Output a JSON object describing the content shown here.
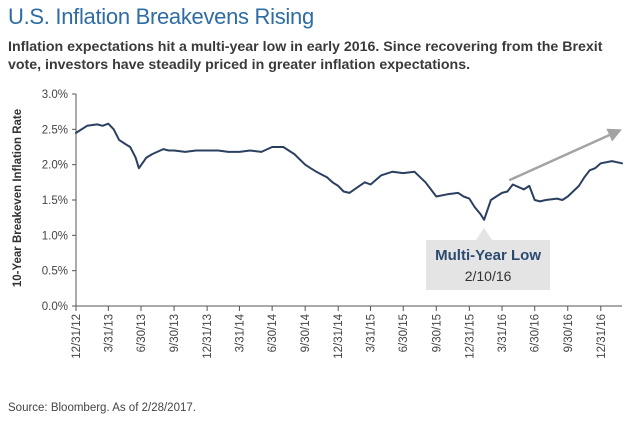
{
  "title": "U.S. Inflation Breakevens Rising",
  "subtitle": "Inflation expectations hit a multi-year low in early 2016. Since recovering from the Brexit vote, investors have steadily priced in greater inflation expectations.",
  "source": "Source: Bloomberg. As of 2/28/2017.",
  "colors": {
    "title": "#2e6da4",
    "line": "#2b4060",
    "arrow": "#a3a3a3",
    "callout_bg": "#e4e4e4",
    "callout_title": "#2b4a6f"
  },
  "chart_data": {
    "type": "line",
    "title": "U.S. Inflation Breakevens Rising",
    "ylabel": "10-Year Breakeven Inflation Rate",
    "xlabel": "",
    "ylim": [
      0,
      3
    ],
    "yticks": [
      "0.0%",
      "0.5%",
      "1.0%",
      "1.5%",
      "2.0%",
      "2.5%",
      "3.0%"
    ],
    "xlim": [
      "2012-12-31",
      "2017-02-28"
    ],
    "xticks": [
      "12/31/12",
      "3/31/13",
      "6/30/13",
      "9/30/13",
      "12/31/13",
      "3/31/14",
      "6/30/14",
      "9/30/14",
      "12/31/14",
      "3/31/15",
      "6/30/15",
      "9/30/15",
      "12/31/15",
      "3/31/16",
      "6/30/16",
      "9/30/16",
      "12/31/16"
    ],
    "grid": false,
    "legend": "none",
    "series": [
      {
        "x": [
          "2012-12-31",
          "2013-01-31",
          "2013-02-28",
          "2013-03-15",
          "2013-03-31",
          "2013-04-15",
          "2013-04-30",
          "2013-05-15",
          "2013-05-31",
          "2013-06-15",
          "2013-06-24",
          "2013-07-15",
          "2013-07-31",
          "2013-08-31",
          "2013-09-15",
          "2013-09-30",
          "2013-10-31",
          "2013-11-30",
          "2013-12-31",
          "2014-01-31",
          "2014-02-28",
          "2014-03-31",
          "2014-04-30",
          "2014-05-31",
          "2014-06-30",
          "2014-07-31",
          "2014-08-31",
          "2014-09-30",
          "2014-10-15",
          "2014-10-31",
          "2014-11-30",
          "2014-12-15",
          "2014-12-31",
          "2015-01-15",
          "2015-01-31",
          "2015-02-28",
          "2015-03-15",
          "2015-03-31",
          "2015-04-30",
          "2015-05-31",
          "2015-06-30",
          "2015-07-31",
          "2015-08-31",
          "2015-09-15",
          "2015-09-30",
          "2015-10-31",
          "2015-11-30",
          "2015-12-15",
          "2015-12-31",
          "2016-01-15",
          "2016-01-31",
          "2016-02-10",
          "2016-02-29",
          "2016-03-15",
          "2016-03-31",
          "2016-04-15",
          "2016-04-30",
          "2016-05-31",
          "2016-06-15",
          "2016-06-30",
          "2016-07-15",
          "2016-07-31",
          "2016-08-31",
          "2016-09-15",
          "2016-09-30",
          "2016-10-31",
          "2016-11-15",
          "2016-11-30",
          "2016-12-15",
          "2016-12-31",
          "2017-01-31",
          "2017-02-28"
        ],
        "values": [
          2.45,
          2.55,
          2.57,
          2.55,
          2.58,
          2.5,
          2.35,
          2.3,
          2.25,
          2.1,
          1.95,
          2.1,
          2.15,
          2.22,
          2.2,
          2.2,
          2.18,
          2.2,
          2.2,
          2.2,
          2.18,
          2.18,
          2.2,
          2.18,
          2.25,
          2.25,
          2.15,
          2.0,
          1.95,
          1.9,
          1.82,
          1.75,
          1.7,
          1.62,
          1.6,
          1.7,
          1.75,
          1.72,
          1.85,
          1.9,
          1.88,
          1.9,
          1.75,
          1.65,
          1.55,
          1.58,
          1.6,
          1.55,
          1.52,
          1.4,
          1.3,
          1.22,
          1.5,
          1.55,
          1.6,
          1.62,
          1.72,
          1.65,
          1.7,
          1.5,
          1.48,
          1.5,
          1.52,
          1.5,
          1.55,
          1.7,
          1.82,
          1.92,
          1.95,
          2.02,
          2.05,
          2.02
        ]
      }
    ],
    "annotations": [
      {
        "title": "Multi-Year Low",
        "text": "2/10/16",
        "x": "2016-02-10",
        "y": 1.22
      }
    ],
    "trend_arrow": {
      "from": {
        "x": "2016-04-20",
        "y": 1.78
      },
      "to": {
        "x": "2017-02-28",
        "y": 2.5
      }
    }
  }
}
